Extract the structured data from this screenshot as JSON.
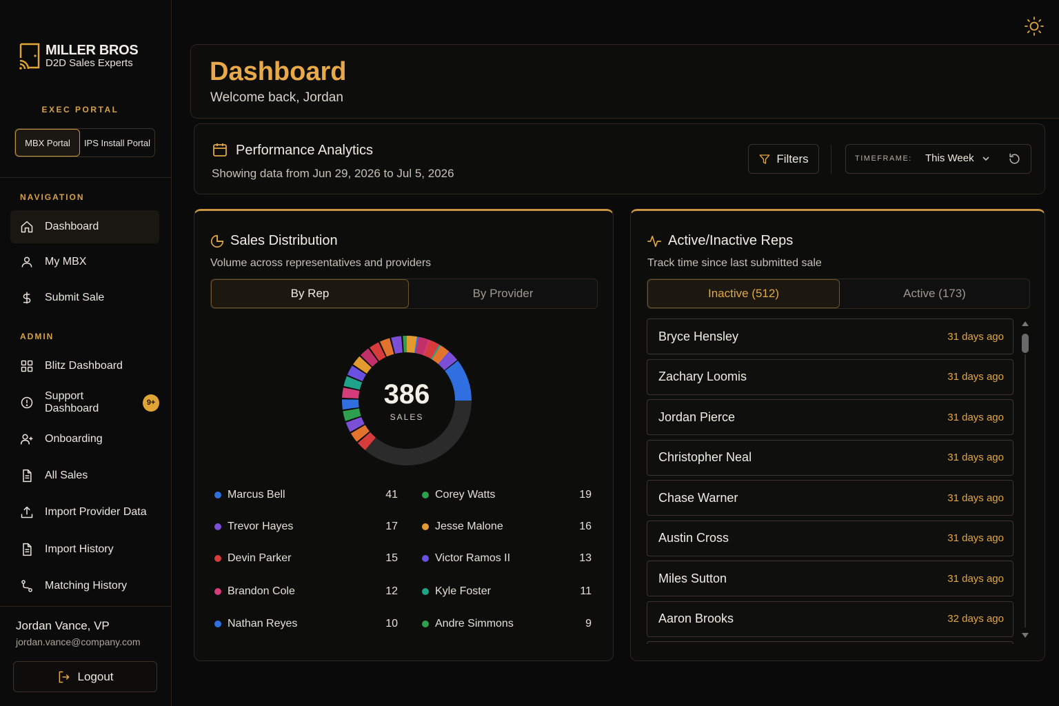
{
  "brand": {
    "title": "MILLER BROS",
    "subtitle": "D2D Sales Experts"
  },
  "sidebar": {
    "exec_label": "EXEC PORTAL",
    "portals": [
      {
        "label": "MBX Portal",
        "active": true
      },
      {
        "label": "IPS Install Portal",
        "active": false
      }
    ],
    "nav_section": "NAVIGATION",
    "nav_items": [
      {
        "label": "Dashboard",
        "icon": "home-icon",
        "active": true
      },
      {
        "label": "My MBX",
        "icon": "user-icon"
      },
      {
        "label": "Submit Sale",
        "icon": "dollar-icon"
      }
    ],
    "admin_section": "ADMIN",
    "admin_items": [
      {
        "label": "Blitz Dashboard",
        "icon": "grid-icon"
      },
      {
        "label": "Support Dashboard",
        "icon": "alert-circle-icon",
        "badge": "9+"
      },
      {
        "label": "Onboarding",
        "icon": "user-plus-icon"
      },
      {
        "label": "All Sales",
        "icon": "document-icon"
      },
      {
        "label": "Import Provider Data",
        "icon": "upload-icon"
      },
      {
        "label": "Import History",
        "icon": "document-icon"
      },
      {
        "label": "Matching History",
        "icon": "route-icon"
      }
    ],
    "user": {
      "name": "Jordan Vance, VP",
      "email": "jordan.vance@company.com"
    },
    "logout_label": "Logout"
  },
  "header": {
    "title": "Dashboard",
    "welcome": "Welcome back, Jordan"
  },
  "performance": {
    "title": "Performance Analytics",
    "range_text": "Showing data from Jun 29, 2026 to Jul 5, 2026",
    "filters_label": "Filters",
    "timeframe_label": "TIMEFRAME:",
    "timeframe_value": "This Week"
  },
  "sales_distribution": {
    "title": "Sales Distribution",
    "subtitle": "Volume across representatives and providers",
    "tabs": [
      {
        "label": "By Rep",
        "active": true
      },
      {
        "label": "By Provider",
        "active": false
      }
    ],
    "total": "386",
    "total_label": "SALES",
    "legend": [
      {
        "name": "Marcus Bell",
        "value": "41",
        "color": "#2f6fe0"
      },
      {
        "name": "Corey Watts",
        "value": "19",
        "color": "#2e9e4f"
      },
      {
        "name": "Trevor Hayes",
        "value": "17",
        "color": "#7b4fd6"
      },
      {
        "name": "Jesse Malone",
        "value": "16",
        "color": "#e39a2e"
      },
      {
        "name": "Devin Parker",
        "value": "15",
        "color": "#d63c3c"
      },
      {
        "name": "Victor Ramos II",
        "value": "13",
        "color": "#6a4fe0"
      },
      {
        "name": "Brandon Cole",
        "value": "12",
        "color": "#d43c7a"
      },
      {
        "name": "Kyle Foster",
        "value": "11",
        "color": "#1fa38a"
      },
      {
        "name": "Nathan Reyes",
        "value": "10",
        "color": "#2f6fe0"
      },
      {
        "name": "Andre Simmons",
        "value": "9",
        "color": "#2e9e4f"
      }
    ]
  },
  "reps": {
    "title": "Active/Inactive Reps",
    "subtitle": "Track time since last submitted sale",
    "tabs": [
      {
        "label": "Inactive (512)",
        "active": true
      },
      {
        "label": "Active (173)",
        "active": false
      }
    ],
    "list": [
      {
        "name": "Bryce Hensley",
        "ago": "31 days ago"
      },
      {
        "name": "Zachary Loomis",
        "ago": "31 days ago"
      },
      {
        "name": "Jordan Pierce",
        "ago": "31 days ago"
      },
      {
        "name": "Christopher Neal",
        "ago": "31 days ago"
      },
      {
        "name": "Chase Warner",
        "ago": "31 days ago"
      },
      {
        "name": "Austin Cross",
        "ago": "31 days ago"
      },
      {
        "name": "Miles Sutton",
        "ago": "31 days ago"
      },
      {
        "name": "Aaron Brooks",
        "ago": "32 days ago"
      }
    ]
  },
  "colors": {
    "accent": "#e9a948",
    "background": "#0a0a0a",
    "border": "#2c2720"
  }
}
